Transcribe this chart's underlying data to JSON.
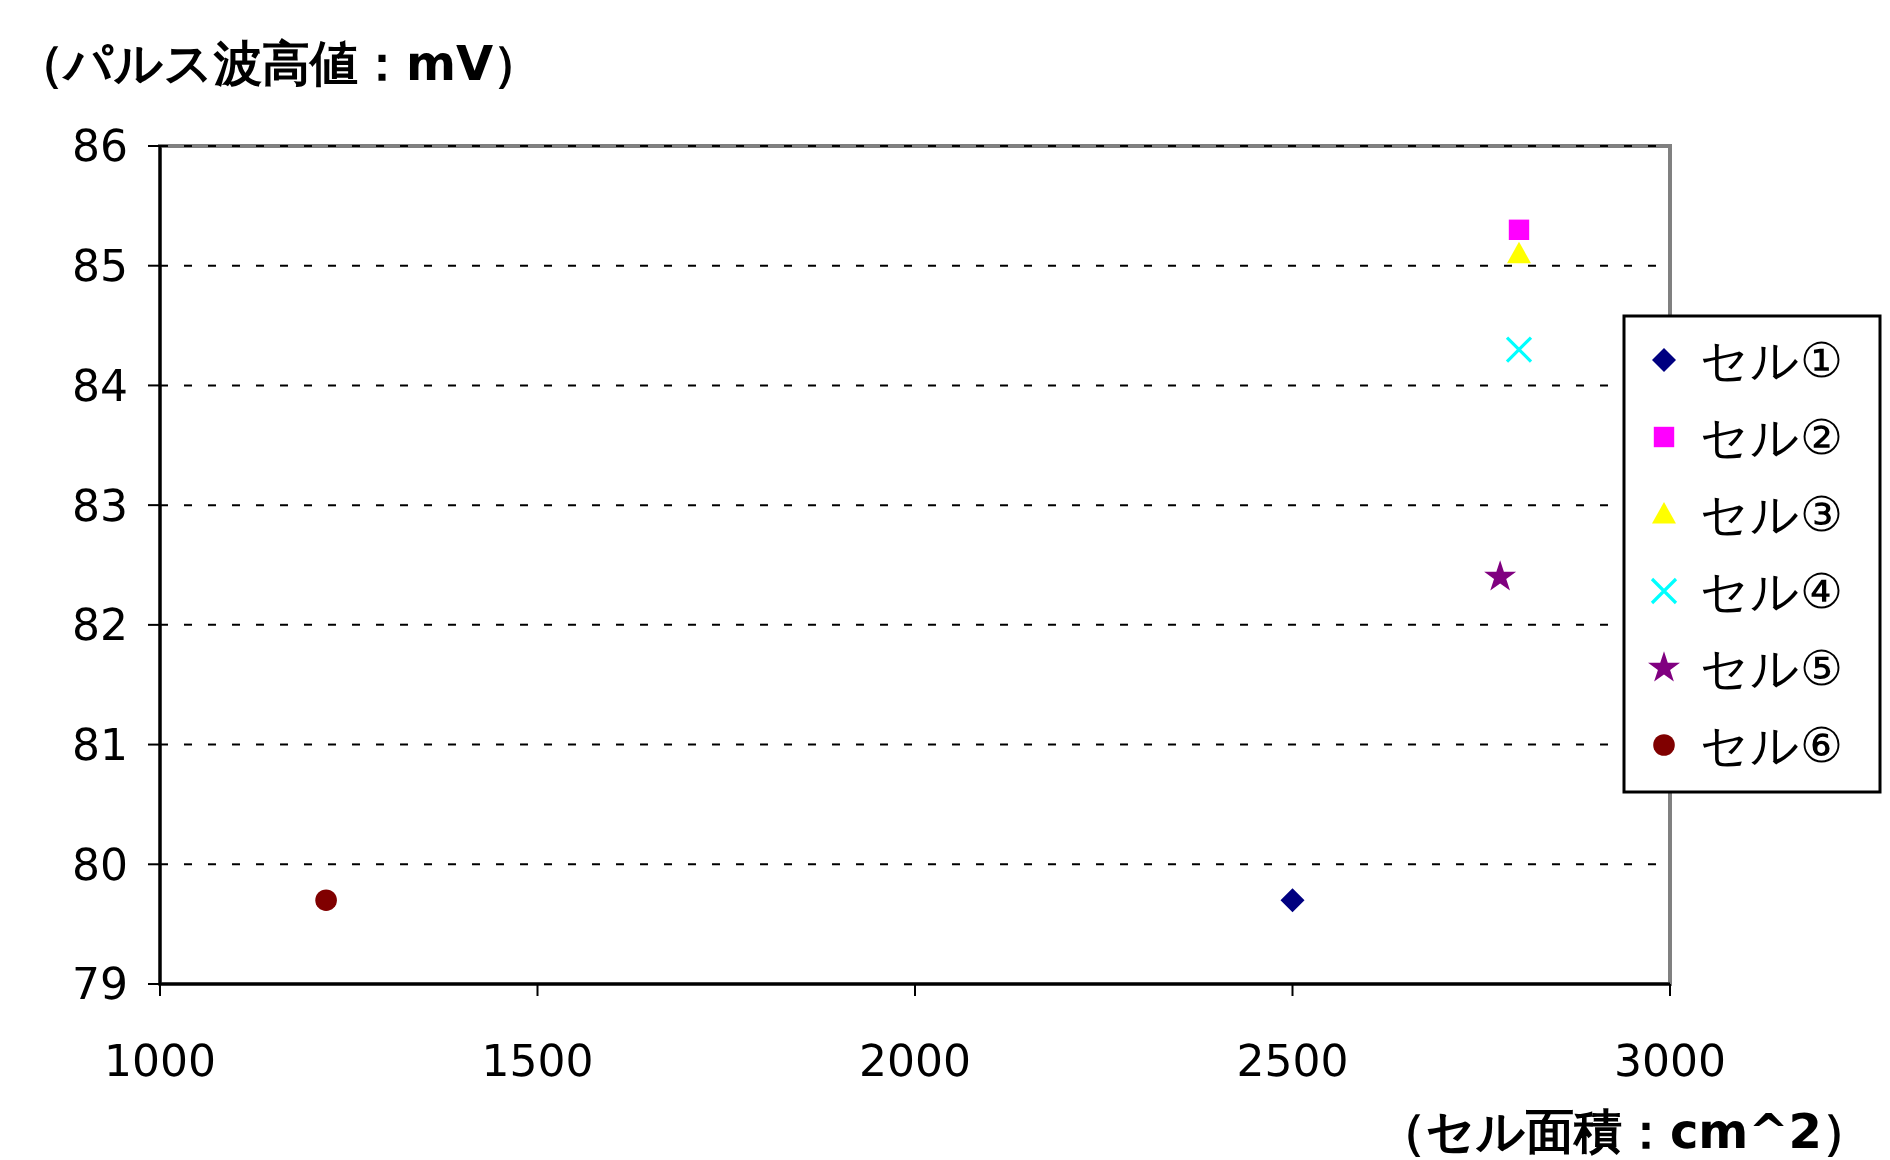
{
  "chart_data": {
    "type": "scatter",
    "xlabel": "（セル面積：cm^2）",
    "ylabel": "（パルス波高値：mV）",
    "xlim": [
      1000,
      3000
    ],
    "xticks": [
      1000,
      1500,
      2000,
      2500,
      3000
    ],
    "ylim": [
      79,
      86
    ],
    "yticks": [
      79,
      80,
      81,
      82,
      83,
      84,
      85,
      86
    ],
    "grid": "y",
    "legend": "right",
    "line_style": "dashed",
    "series": [
      {
        "name": "セル①",
        "color": "#000080",
        "marker": "diamond",
        "x": [
          2500
        ],
        "values": [
          79.7
        ]
      },
      {
        "name": "セル②",
        "color": "#ff00ff",
        "marker": "square",
        "x": [
          2800
        ],
        "values": [
          85.3
        ]
      },
      {
        "name": "セル③",
        "color": "#ffff00",
        "marker": "triangle",
        "x": [
          2800
        ],
        "values": [
          85.1
        ]
      },
      {
        "name": "セル④",
        "color": "#00ffff",
        "marker": "cross",
        "x": [
          2800
        ],
        "values": [
          84.3
        ]
      },
      {
        "name": "セル⑤",
        "color": "#800080",
        "marker": "star",
        "x": [
          2775
        ],
        "values": [
          82.4
        ]
      },
      {
        "name": "セル⑥",
        "color": "#800000",
        "marker": "circle",
        "x": [
          1220
        ],
        "values": [
          79.7
        ]
      }
    ]
  }
}
